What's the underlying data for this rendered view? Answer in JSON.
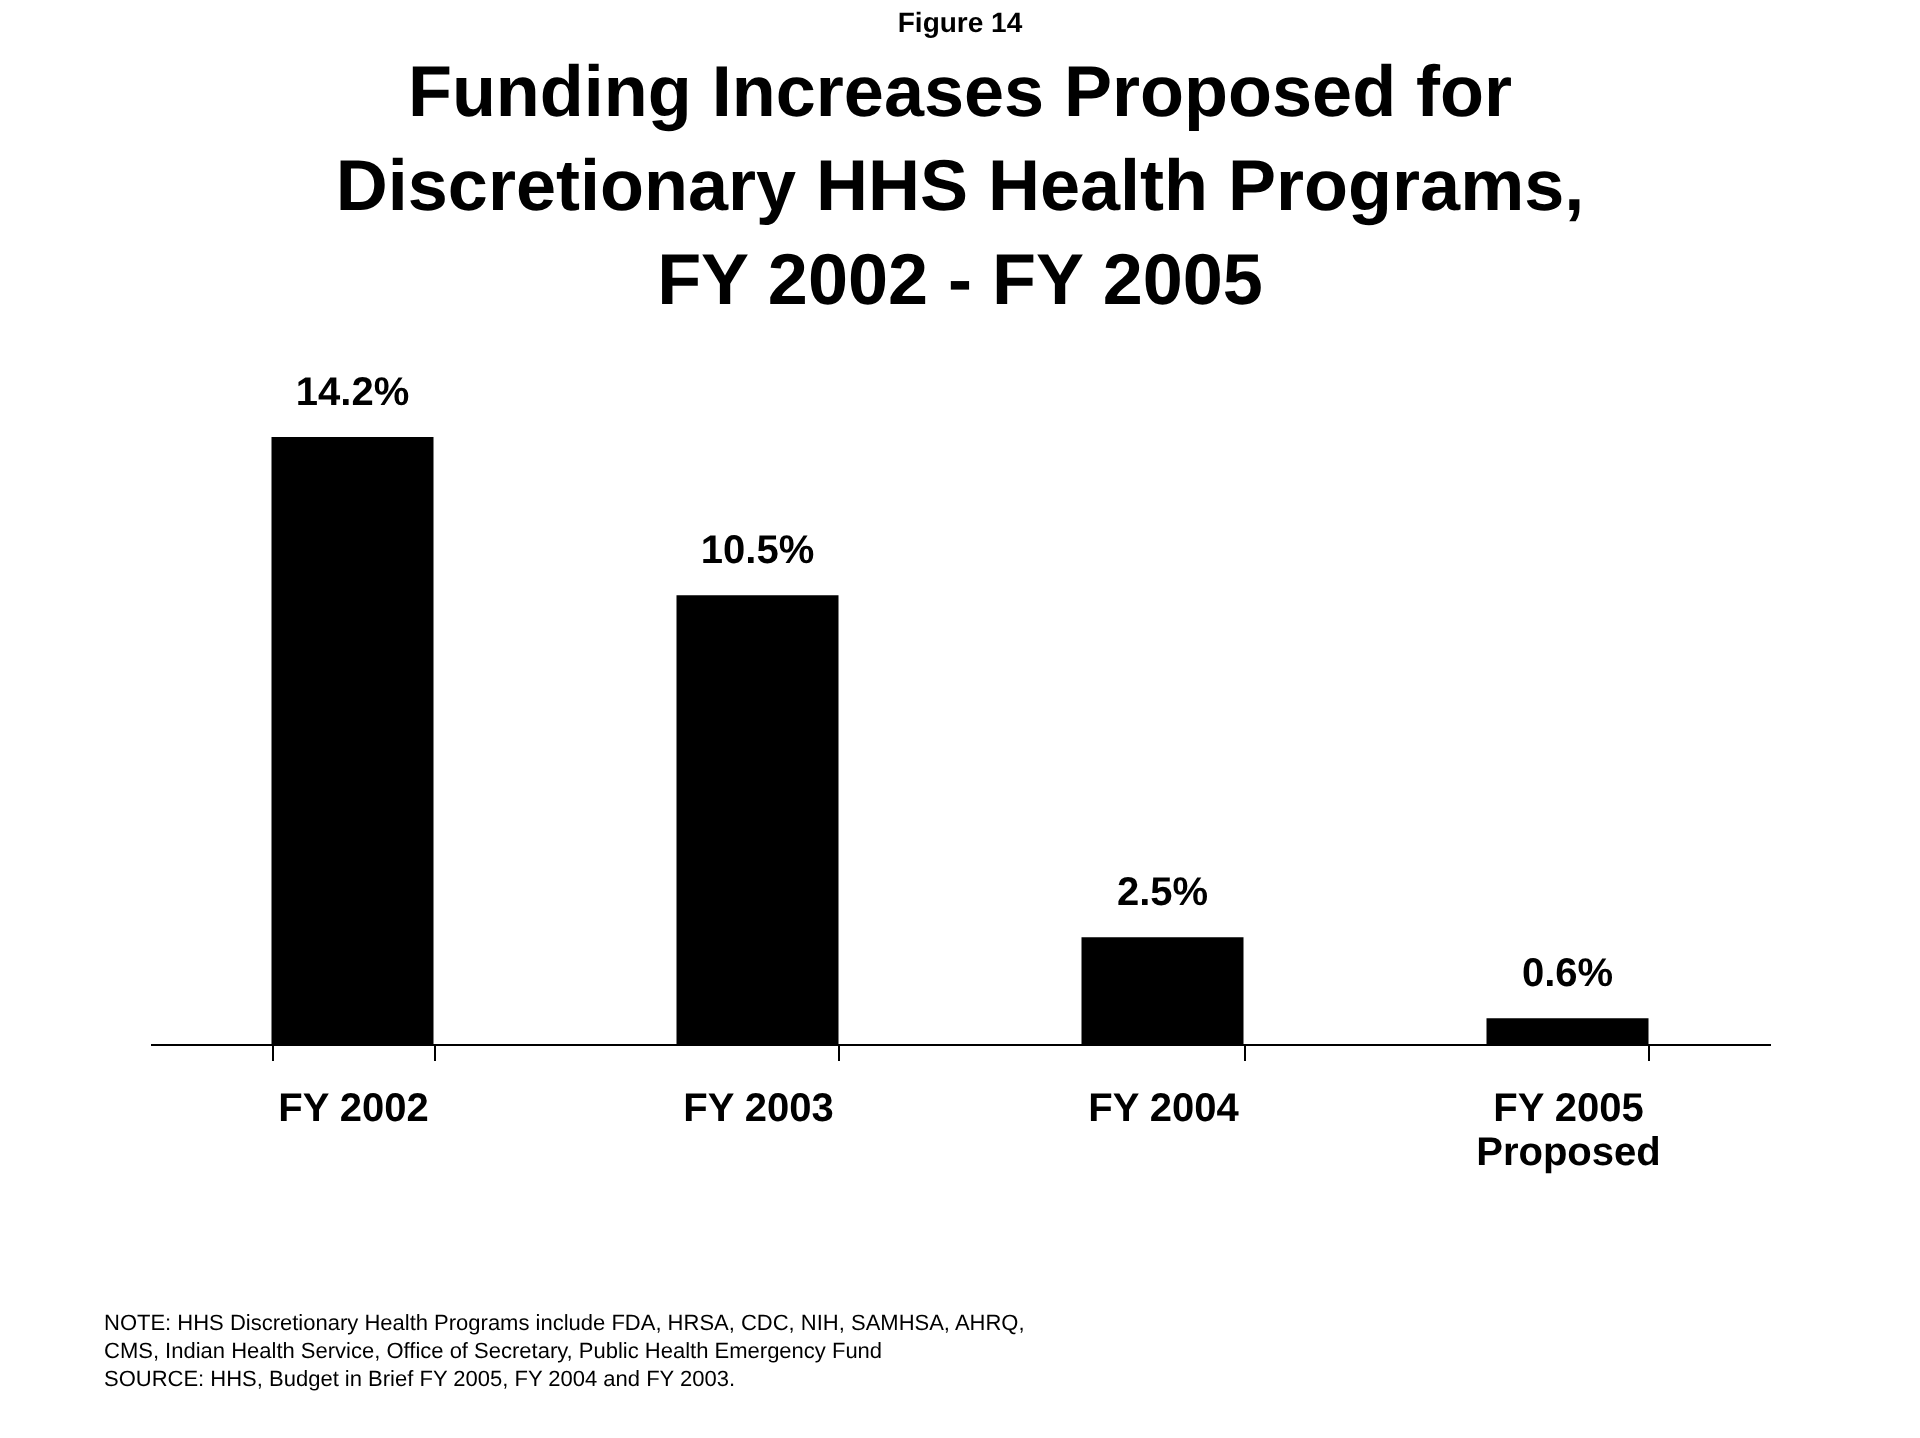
{
  "chart_data": {
    "type": "bar",
    "title": "Funding Increases Proposed for\nDiscretionary HHS Health Programs,\nFY 2002 - FY 2005",
    "categories": [
      "FY 2002",
      "FY 2003",
      "FY 2004",
      "FY 2005\nProposed"
    ],
    "values": [
      14.2,
      10.5,
      2.5,
      0.6
    ],
    "value_labels": [
      "14.2%",
      "10.5%",
      "2.5%",
      "0.6%"
    ],
    "color": "#000000",
    "grid": false,
    "tick_labels": "x",
    "annotations": [
      "Figure 14",
      "NOTE:  HHS Discretionary Health Programs include FDA, HRSA, CDC, NIH, SAMHSA, AHRQ,\nCMS, Indian Health Service, Office of Secretary, Public Health Emergency Fund\nSOURCE: HHS, Budget in Brief FY 2005, FY 2004 and FY 2003."
    ]
  }
}
